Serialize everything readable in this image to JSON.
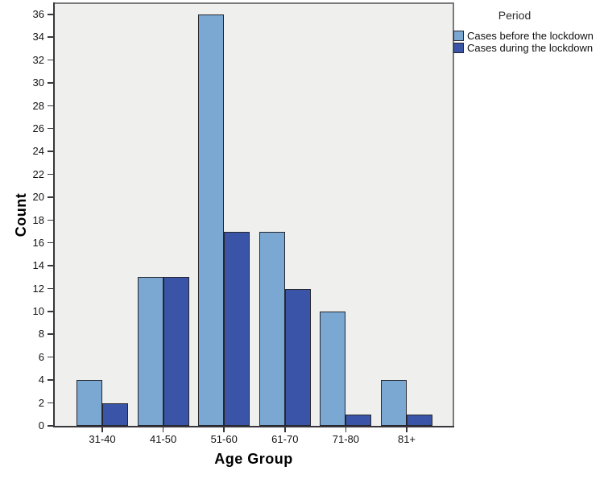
{
  "chart_data": {
    "type": "bar",
    "title": "",
    "categories": [
      "31-40",
      "41-50",
      "51-60",
      "61-70",
      "71-80",
      "81+"
    ],
    "series": [
      {
        "name": "Cases before the lockdown",
        "color": "#7AA8D3",
        "values": [
          4,
          13,
          36,
          17,
          10,
          4
        ]
      },
      {
        "name": "Cases during the lockdown",
        "color": "#3A55A8",
        "values": [
          2,
          13,
          17,
          12,
          1,
          1
        ]
      }
    ],
    "xlabel": "Age Group",
    "ylabel": "Count",
    "legend_title": "Period",
    "legend_position": "top-right-outside",
    "ylim": [
      0,
      36
    ],
    "ytick_step": 2,
    "grid": false,
    "plot_background": "#EFEFED",
    "bar_border_color": "#26262E"
  }
}
